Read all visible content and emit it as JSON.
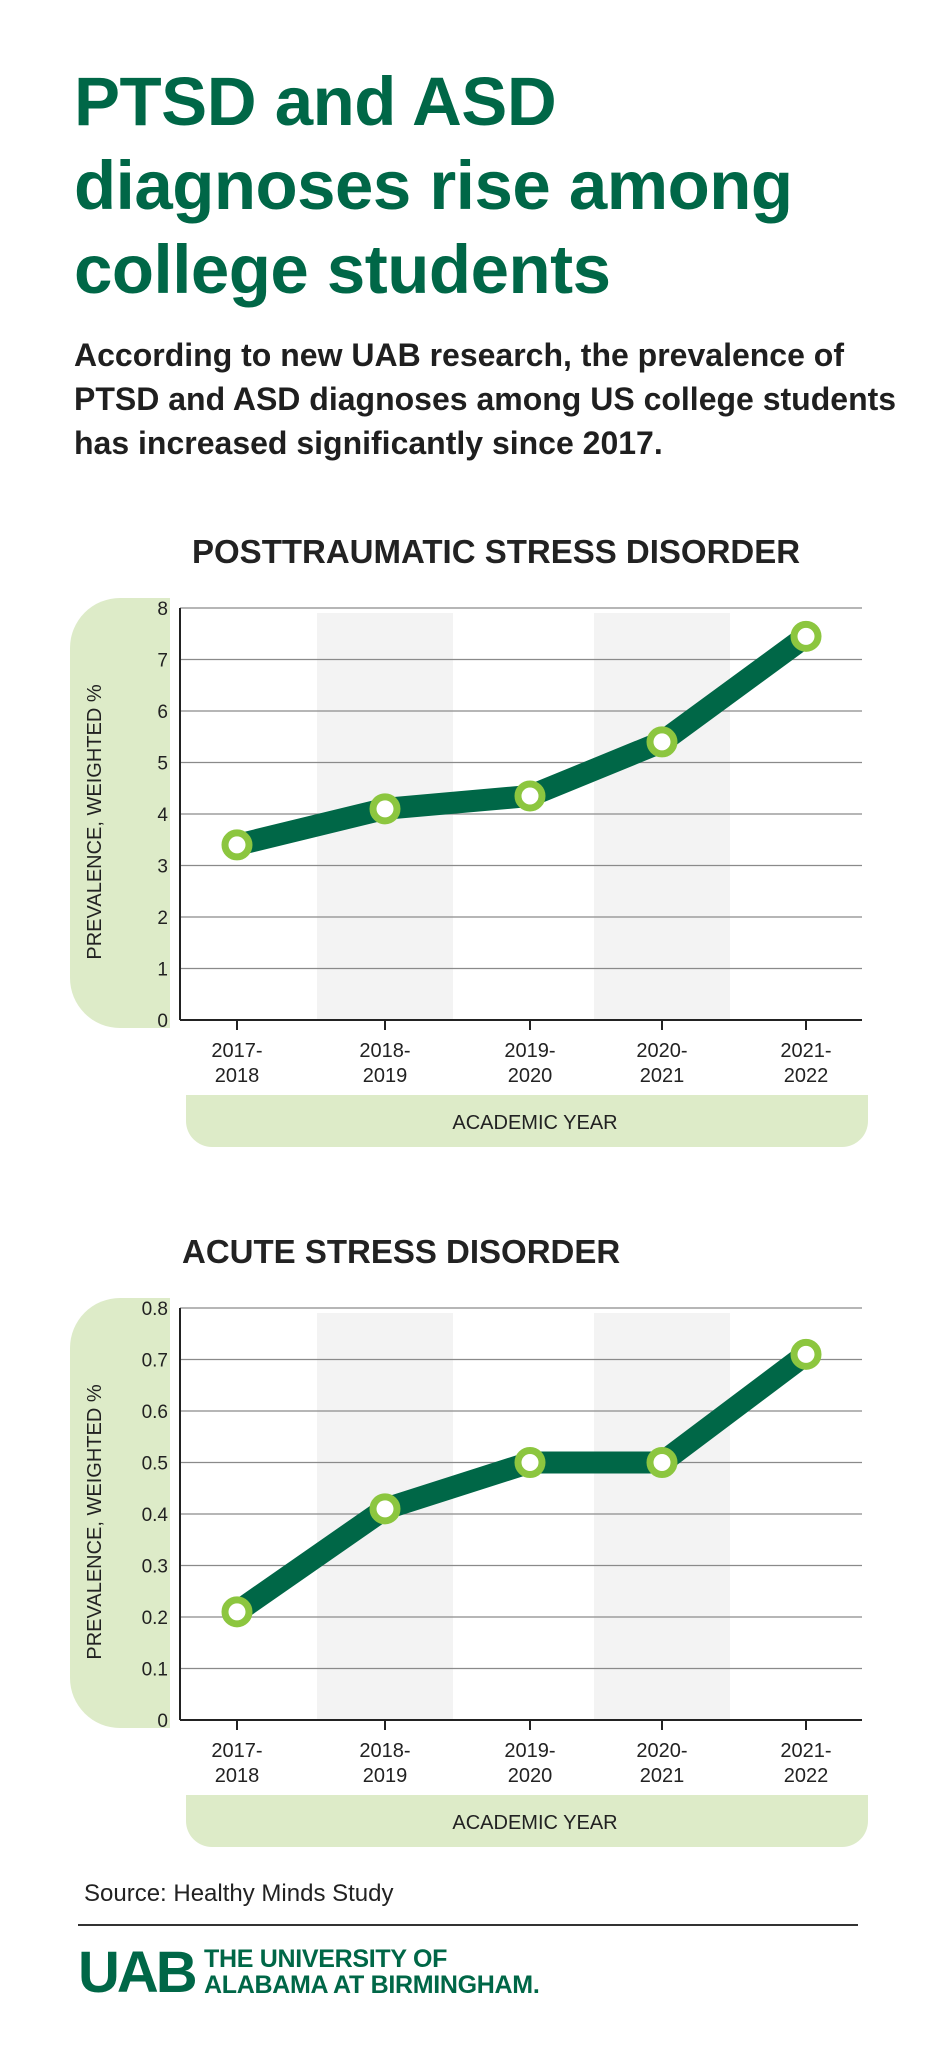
{
  "headline": "PTSD and ASD diagnoses rise among college students",
  "subheadline": "According to new UAB research, the prevalence of PTSD and ASD diagnoses among US college students has increased significantly since 2017.",
  "colors": {
    "brand_green": "#006747",
    "accent_light_green": "#8cc63f",
    "band_green": "#ddebc8",
    "band_gray": "#f3f3f3"
  },
  "chart_data": [
    {
      "type": "line",
      "title": "POSTTRAUMATIC STRESS DISORDER",
      "xlabel": "ACADEMIC YEAR",
      "ylabel": "PREVALENCE, WEIGHTED %",
      "categories": [
        [
          "2017-",
          "2018"
        ],
        [
          "2018-",
          "2019"
        ],
        [
          "2019-",
          "2020"
        ],
        [
          "2020-",
          "2021"
        ],
        [
          "2021-",
          "2022"
        ]
      ],
      "values": [
        3.4,
        4.1,
        4.35,
        5.4,
        7.45
      ],
      "ylim": [
        0,
        8
      ],
      "yticks": [
        "0",
        "1",
        "2",
        "3",
        "4",
        "5",
        "6",
        "7",
        "8"
      ],
      "grid": true,
      "shaded_categories": [
        1,
        3
      ]
    },
    {
      "type": "line",
      "title": "ACUTE STRESS DISORDER",
      "xlabel": "ACADEMIC YEAR",
      "ylabel": "PREVALENCE, WEIGHTED %",
      "categories": [
        [
          "2017-",
          "2018"
        ],
        [
          "2018-",
          "2019"
        ],
        [
          "2019-",
          "2020"
        ],
        [
          "2020-",
          "2021"
        ],
        [
          "2021-",
          "2022"
        ]
      ],
      "values": [
        0.21,
        0.41,
        0.5,
        0.5,
        0.71
      ],
      "ylim": [
        0,
        0.8
      ],
      "yticks": [
        "0",
        "0.1",
        "0.2",
        "0.3",
        "0.4",
        "0.5",
        "0.6",
        "0.7",
        "0.8"
      ],
      "grid": true,
      "shaded_categories": [
        1,
        3
      ]
    }
  ],
  "source": "Source: Healthy Minds Study",
  "logo": {
    "mark": "UAB",
    "line1": "THE UNIVERSITY OF",
    "line2": "ALABAMA AT BIRMINGHAM."
  }
}
